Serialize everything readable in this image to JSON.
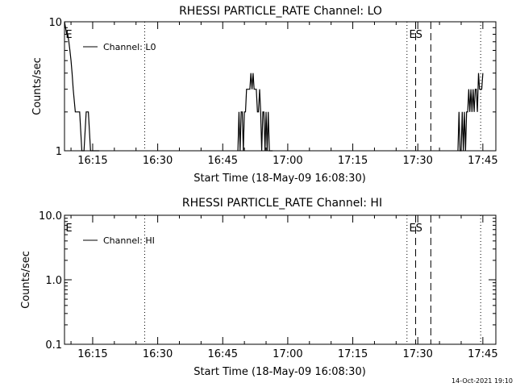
{
  "footer": {
    "timestamp": "14-Oct-2021 19:10"
  },
  "chart_data": [
    {
      "type": "line",
      "title": "RHESSI PARTICLE_RATE Channel: LO",
      "xlabel": "Start Time (18-May-09 16:08:30)",
      "ylabel": "Counts/sec",
      "y_scale": "log",
      "xlim": [
        "16:08:30",
        "17:48:00"
      ],
      "ylim": [
        1,
        10
      ],
      "x_ticks": [
        "16:15",
        "16:30",
        "16:45",
        "17:00",
        "17:15",
        "17:30",
        "17:45"
      ],
      "y_ticks": [
        "1",
        "10"
      ],
      "legend": {
        "position": "top-left",
        "entries": [
          "Channel: L0"
        ]
      },
      "flags": [
        {
          "label": "E",
          "time": "16:08:45"
        },
        {
          "label": "ES",
          "time": "17:28:00"
        }
      ],
      "vlines": [
        {
          "time": "16:27:00",
          "style": "dotted"
        },
        {
          "time": "17:27:30",
          "style": "dotted"
        },
        {
          "time": "17:29:30",
          "style": "dashed"
        },
        {
          "time": "17:33:00",
          "style": "dashed"
        },
        {
          "time": "17:44:30",
          "style": "dotted"
        }
      ],
      "series": [
        {
          "name": "Channel: L0",
          "times": [
            "16:08:30",
            "16:08:45",
            "16:09:00",
            "16:09:15",
            "16:09:30",
            "16:09:45",
            "16:10:00",
            "16:10:15",
            "16:10:30",
            "16:11:00",
            "16:11:30",
            "16:12:00",
            "16:12:30",
            "16:13:00",
            "16:13:30",
            "16:14:00",
            "16:14:30",
            "16:15:00",
            "16:15:30",
            "16:16:30",
            "16:48:30",
            "16:48:45",
            "16:49:00",
            "16:49:15",
            "16:49:30",
            "16:49:45",
            "16:50:00",
            "16:50:15",
            "16:50:30",
            "16:51:00",
            "16:51:15",
            "16:51:30",
            "16:51:45",
            "16:52:00",
            "16:52:15",
            "16:52:30",
            "16:52:45",
            "16:53:00",
            "16:53:15",
            "16:53:30",
            "16:53:45",
            "16:54:00",
            "16:54:15",
            "16:54:30",
            "16:54:45",
            "16:55:00",
            "16:55:15",
            "16:55:30",
            "16:55:45",
            "16:56:00",
            "16:56:30",
            "17:39:15",
            "17:39:30",
            "17:39:45",
            "17:40:00",
            "17:40:15",
            "17:40:30",
            "17:40:45",
            "17:41:00",
            "17:41:15",
            "17:41:30",
            "17:41:45",
            "17:42:00",
            "17:42:15",
            "17:42:30",
            "17:42:45",
            "17:43:00",
            "17:43:15",
            "17:43:30",
            "17:43:45",
            "17:44:00",
            "17:44:15",
            "17:44:30",
            "17:44:45",
            "17:45:00"
          ],
          "values": [
            10,
            9,
            8,
            8,
            7,
            6,
            5,
            4,
            3,
            2,
            2,
            2,
            1,
            1,
            2,
            2,
            1,
            1,
            1,
            1,
            1,
            2,
            1,
            2,
            2,
            1,
            2,
            2,
            3,
            3,
            3,
            4,
            3,
            4,
            3,
            3,
            3,
            2,
            2,
            3,
            2,
            1,
            2,
            2,
            1,
            2,
            1,
            2,
            1,
            1,
            1,
            1,
            2,
            1,
            1,
            2,
            1,
            2,
            1,
            2,
            2,
            3,
            2,
            3,
            2,
            3,
            2,
            3,
            3,
            2,
            4,
            3,
            3,
            3,
            4
          ]
        }
      ]
    },
    {
      "type": "line",
      "title": "RHESSI PARTICLE_RATE Channel: HI",
      "xlabel": "Start Time (18-May-09 16:08:30)",
      "ylabel": "Counts/sec",
      "y_scale": "log",
      "xlim": [
        "16:08:30",
        "17:48:00"
      ],
      "ylim": [
        0.1,
        10
      ],
      "x_ticks": [
        "16:15",
        "16:30",
        "16:45",
        "17:00",
        "17:15",
        "17:30",
        "17:45"
      ],
      "y_ticks": [
        "0.1",
        "1.0",
        "10.0"
      ],
      "legend": {
        "position": "top-left",
        "entries": [
          "Channel: HI"
        ]
      },
      "flags": [
        {
          "label": "E",
          "time": "16:08:45"
        },
        {
          "label": "ES",
          "time": "17:28:00"
        }
      ],
      "vlines": [
        {
          "time": "16:27:00",
          "style": "dotted"
        },
        {
          "time": "17:27:30",
          "style": "dotted"
        },
        {
          "time": "17:29:30",
          "style": "dashed"
        },
        {
          "time": "17:33:00",
          "style": "dashed"
        },
        {
          "time": "17:44:30",
          "style": "dotted"
        }
      ],
      "series": [
        {
          "name": "Channel: HI",
          "times": [],
          "values": []
        }
      ]
    }
  ]
}
